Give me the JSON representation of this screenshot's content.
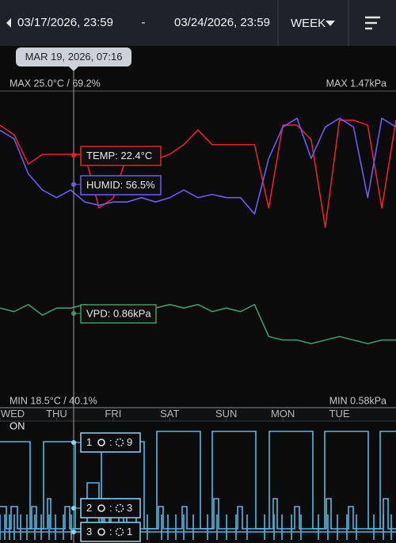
{
  "header": {
    "start": "03/17/2026, 23:59",
    "separator": "-",
    "end": "03/24/2026, 23:59",
    "range": "WEEK"
  },
  "cursor": {
    "time": "MAR 19, 2026, 07:16",
    "temp": "TEMP: 22.4°C",
    "humid": "HUMID: 56.5%",
    "vpd": "VPD: 0.86kPa"
  },
  "limits": {
    "max_left": "MAX 25.0°C / 69.2%",
    "max_right": "MAX 1.47kPa",
    "min_left": "MIN 18.5°C / 40.1%",
    "min_right": "MIN 0.58kPa"
  },
  "chart_data": {
    "type": "line",
    "x": [
      0,
      0.25,
      0.5,
      0.75,
      1,
      1.25,
      1.5,
      1.75,
      2,
      2.25,
      2.5,
      2.75,
      3,
      3.25,
      3.5,
      3.75,
      4,
      4.25,
      4.5,
      4.75,
      5,
      5.25,
      5.5,
      5.75,
      6,
      6.25,
      6.5,
      6.75,
      7
    ],
    "xlim": [
      0,
      7
    ],
    "xticks": [
      {
        "value": 0,
        "label": "WED"
      },
      {
        "value": 1,
        "label": "THU"
      },
      {
        "value": 2,
        "label": "FRI"
      },
      {
        "value": 3,
        "label": "SAT"
      },
      {
        "value": 4,
        "label": "SUN"
      },
      {
        "value": 5,
        "label": "MON"
      },
      {
        "value": 6,
        "label": "TUE"
      }
    ],
    "series": [
      {
        "name": "TEMP",
        "color": "#e3222c",
        "ylim": [
          18.5,
          25.0
        ],
        "values": [
          24.3,
          24.1,
          23.5,
          23.7,
          23.7,
          23.7,
          23.7,
          22.6,
          22.8,
          23.7,
          23.8,
          23.6,
          23.7,
          23.9,
          24.2,
          23.9,
          23.9,
          23.9,
          23.9,
          22.6,
          24.3,
          24.3,
          24.0,
          22.2,
          24.4,
          24.4,
          24.3,
          22.6,
          24.4
        ]
      },
      {
        "name": "HUMID",
        "color": "#6b5cf2",
        "ylim": [
          40.1,
          69.2
        ],
        "values": [
          65.6,
          64.8,
          61.6,
          60.1,
          59.4,
          60.1,
          59.0,
          58.7,
          59.0,
          59.0,
          59.4,
          59.0,
          59.4,
          60.1,
          59.4,
          59.7,
          59.4,
          59.4,
          57.9,
          63.0,
          65.9,
          66.7,
          63.0,
          65.9,
          66.7,
          65.9,
          59.4,
          66.7,
          65.9
        ]
      },
      {
        "name": "VPD",
        "color": "#3e9a6c",
        "ylim": [
          0.58,
          1.47
        ],
        "values": [
          0.86,
          0.85,
          0.87,
          0.84,
          0.86,
          0.86,
          0.87,
          0.86,
          0.85,
          0.86,
          0.86,
          0.86,
          0.87,
          0.86,
          0.87,
          0.85,
          0.86,
          0.85,
          0.87,
          0.78,
          0.77,
          0.77,
          0.76,
          0.77,
          0.78,
          0.77,
          0.76,
          0.77,
          0.77
        ]
      }
    ]
  },
  "outputs": {
    "state": "ON",
    "rows": [
      {
        "id": "1",
        "sep": ":",
        "count": "9"
      },
      {
        "id": "2",
        "sep": ":",
        "count": "3"
      },
      {
        "id": "3",
        "sep": ":",
        "count": "1"
      }
    ]
  }
}
